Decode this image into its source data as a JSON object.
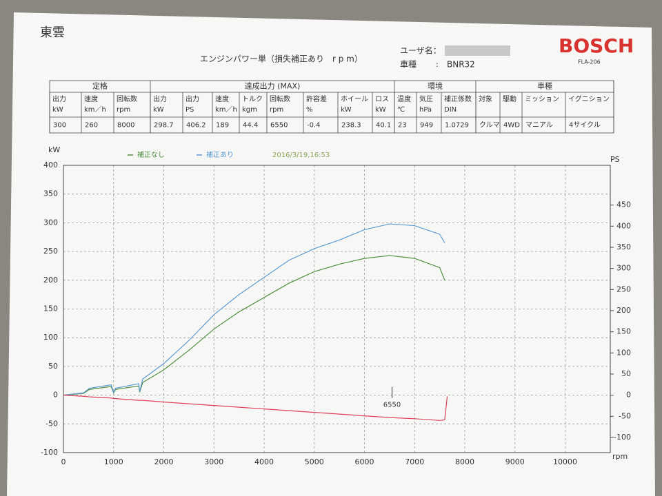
{
  "header": {
    "company": "東雲",
    "title": "エンジンパワー単（損失補正あり　r p m）",
    "user_label": "ユーザ名：",
    "model_label": "車種",
    "model_sep": ":",
    "model": "BNR32",
    "brand": "BOSCH",
    "brand_code": "FLA-206"
  },
  "table": {
    "groups": [
      "定格",
      "達成出力 (MAX)",
      "環境",
      "車種"
    ],
    "headers": [
      [
        "出力",
        "kW"
      ],
      [
        "速度",
        "km／h"
      ],
      [
        "回転数",
        "rpm"
      ],
      [
        "出力",
        "kW"
      ],
      [
        "出力",
        "PS"
      ],
      [
        "速度",
        "km／h"
      ],
      [
        "トルク",
        "kgm"
      ],
      [
        "回転数",
        "rpm"
      ],
      [
        "許容差",
        "%"
      ],
      [
        "ホイール",
        "kW"
      ],
      [
        "ロス",
        "kW"
      ],
      [
        "温度",
        "℃"
      ],
      [
        "気圧",
        "hPa"
      ],
      [
        "補正係数",
        "DIN"
      ],
      [
        "対象"
      ],
      [
        "駆動"
      ],
      [
        "ミッション"
      ],
      [
        "イグニション"
      ]
    ],
    "row": [
      300,
      260,
      8000,
      298.7,
      406.2,
      189,
      44.4,
      6550,
      -0.4,
      238.3,
      40.1,
      23,
      949,
      1.0729,
      "クルマ",
      "4WD",
      "マニアル",
      "4サイクル"
    ]
  },
  "chart_data": {
    "type": "line",
    "date": "2016/3/19,16:53",
    "y_label": "kW",
    "y2_label": "PS",
    "x_label": "rpm",
    "peak_rpm": 6550,
    "x": [
      0,
      400,
      520,
      950,
      1000,
      1040,
      1500,
      1520,
      1580,
      2000,
      2500,
      3000,
      3500,
      4000,
      4500,
      5000,
      5500,
      6000,
      6500,
      7000,
      7500,
      7600,
      7650
    ],
    "series": [
      {
        "name": "補正なし",
        "color": "#4f8f3f",
        "values": [
          0,
          3,
          10,
          15,
          4,
          10,
          16,
          5,
          22,
          44,
          78,
          115,
          145,
          170,
          195,
          215,
          228,
          238,
          243,
          238,
          222,
          200,
          null
        ]
      },
      {
        "name": "補正あり",
        "color": "#5b9bd2",
        "values": [
          0,
          4,
          12,
          18,
          5,
          12,
          20,
          6,
          28,
          55,
          95,
          140,
          175,
          205,
          235,
          255,
          270,
          288,
          298,
          295,
          280,
          265,
          null
        ]
      },
      {
        "color": "#e0405a",
        "values": [
          0,
          -2,
          -3,
          -5,
          -6,
          -6,
          -9,
          -9,
          -9,
          -12,
          -15,
          -18,
          -21,
          -24,
          -27,
          -30,
          -33,
          -36,
          -39,
          -41,
          -44,
          -43,
          -2
        ]
      }
    ],
    "xlim": [
      0,
      10900
    ],
    "xticks": [
      0,
      1000,
      2000,
      3000,
      4000,
      5000,
      6000,
      7000,
      8000,
      9000,
      10000
    ],
    "ylim": [
      -100,
      400
    ],
    "yticks": [
      -100,
      -50,
      0,
      50,
      100,
      150,
      200,
      250,
      300,
      350,
      400
    ],
    "y2lim": [
      -136,
      544
    ],
    "y2ticks": [
      -100,
      -50,
      0,
      50,
      100,
      150,
      200,
      250,
      300,
      350,
      400,
      450
    ],
    "grid": true
  }
}
